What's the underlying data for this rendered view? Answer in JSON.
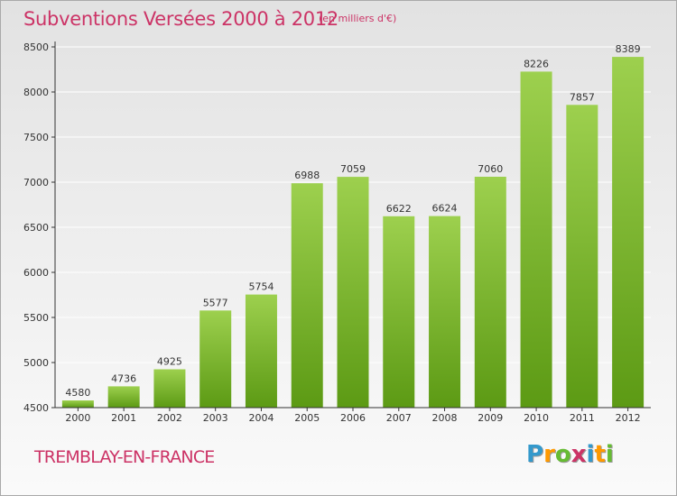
{
  "title": "Subventions Versées 2000 à 2012",
  "unit_note": "(en milliers d'€)",
  "commune": "TREMBLAY-EN-FRANCE",
  "logo": {
    "letters": [
      "P",
      "r",
      "o",
      "x",
      "i",
      "t",
      "i"
    ],
    "colors": [
      "#3399cc",
      "#ff9900",
      "#66bb33",
      "#cc3366",
      "#3399cc",
      "#ff9900",
      "#66bb33"
    ]
  },
  "colors": {
    "title": "#cc3366",
    "bar_top": "#9dd04e",
    "bar_bottom": "#5c9a14",
    "axis": "#333333",
    "gridline": "#ffffff"
  },
  "chart_data": {
    "type": "bar",
    "categories": [
      "2000",
      "2001",
      "2002",
      "2003",
      "2004",
      "2005",
      "2006",
      "2007",
      "2008",
      "2009",
      "2010",
      "2011",
      "2012"
    ],
    "values": [
      4580,
      4736,
      4925,
      5577,
      5754,
      6988,
      7059,
      6622,
      6624,
      7060,
      8226,
      7857,
      8389
    ],
    "ylim": [
      4500,
      8500
    ],
    "yticks": [
      4500,
      5000,
      5500,
      6000,
      6500,
      7000,
      7500,
      8000,
      8500
    ],
    "grid": true,
    "data_labels": true
  }
}
